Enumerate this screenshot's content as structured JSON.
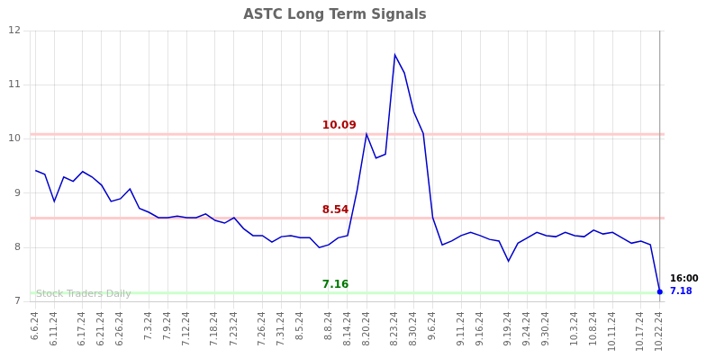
{
  "chart_data": {
    "type": "line",
    "title": "ASTC Long Term Signals",
    "categories": [
      "6.6.24",
      null,
      "6.11.24",
      null,
      null,
      "6.17.24",
      null,
      "6.21.24",
      null,
      "6.26.24",
      null,
      null,
      "7.3.24",
      null,
      "7.9.24",
      null,
      "7.12.24",
      null,
      null,
      "7.18.24",
      null,
      "7.23.24",
      null,
      null,
      "7.26.24",
      null,
      "7.31.24",
      null,
      "8.5.24",
      null,
      null,
      "8.8.24",
      null,
      "8.14.24",
      null,
      "8.20.24",
      null,
      null,
      "8.23.24",
      null,
      "8.30.24",
      null,
      "9.6.24",
      null,
      null,
      "9.11.24",
      null,
      "9.16.24",
      null,
      null,
      "9.19.24",
      null,
      "9.24.24",
      null,
      "9.30.24",
      null,
      null,
      "10.3.24",
      null,
      "10.8.24",
      null,
      "10.11.24",
      null,
      null,
      "10.17.24",
      null,
      "10.22.24"
    ],
    "series": [
      {
        "color": "#0000cc",
        "values": [
          9.42,
          9.35,
          8.85,
          9.3,
          9.22,
          9.4,
          9.3,
          9.15,
          8.85,
          8.9,
          9.08,
          8.72,
          8.65,
          8.55,
          8.55,
          8.58,
          8.55,
          8.55,
          8.62,
          8.5,
          8.45,
          8.55,
          8.35,
          8.22,
          8.22,
          8.1,
          8.2,
          8.22,
          8.18,
          8.18,
          8.0,
          8.05,
          8.18,
          8.22,
          9.05,
          10.09,
          9.65,
          9.72,
          11.55,
          11.22,
          10.5,
          10.1,
          8.55,
          8.05,
          8.12,
          8.22,
          8.28,
          8.22,
          8.15,
          8.12,
          7.75,
          8.08,
          8.18,
          8.28,
          8.22,
          8.2,
          8.28,
          8.22,
          8.2,
          8.32,
          8.25,
          8.28,
          8.18,
          8.08,
          8.12,
          8.05,
          7.18
        ]
      }
    ],
    "ylim": [
      7,
      12
    ],
    "yticks": [
      7,
      8,
      9,
      10,
      11,
      12
    ],
    "grid": true,
    "annotations": [
      {
        "type": "hline",
        "y": 10.09,
        "text": "10.09",
        "color": "#ffcccc",
        "text_color": "#aa0000"
      },
      {
        "type": "hline",
        "y": 8.54,
        "text": "8.54",
        "color": "#ffcccc",
        "text_color": "#aa0000"
      },
      {
        "type": "hline",
        "y": 7.16,
        "text": "7.16",
        "color": "#ccffcc",
        "text_color": "#007700"
      },
      {
        "type": "watermark",
        "text": "Stock Traders Daily",
        "color": "#bbbbbb"
      },
      {
        "type": "end",
        "text": "16:00",
        "value": 7.18,
        "color": "#0000ff",
        "text_color": "#000000",
        "line_color": "#999999"
      }
    ]
  }
}
